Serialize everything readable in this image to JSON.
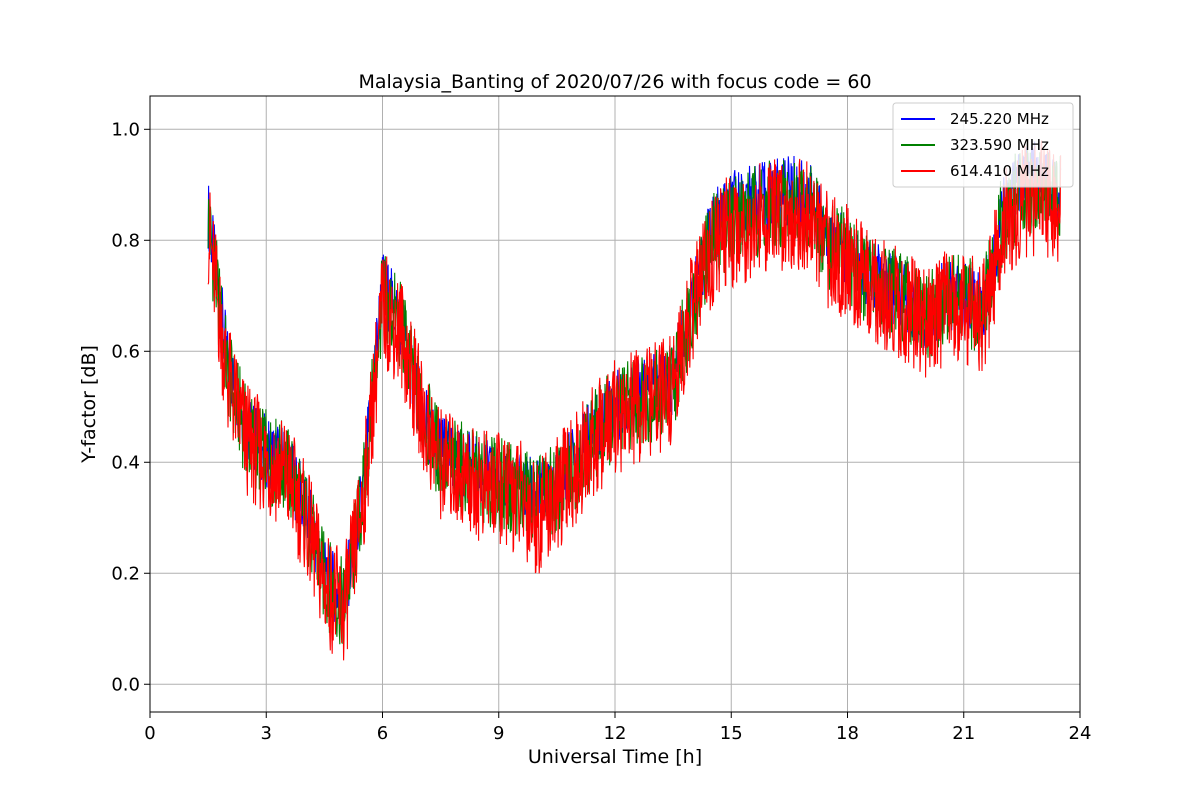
{
  "chart_data": {
    "type": "line",
    "title": "Malaysia_Banting of 2020/07/26 with focus code = 60",
    "xlabel": "Universal Time [h]",
    "ylabel": "Y-factor [dB]",
    "xlim": [
      0,
      24
    ],
    "ylim": [
      -0.05,
      1.06
    ],
    "xticks": [
      "0",
      "3",
      "6",
      "9",
      "12",
      "15",
      "18",
      "21",
      "24"
    ],
    "yticks": [
      "0.0",
      "0.2",
      "0.4",
      "0.6",
      "0.8",
      "1.0"
    ],
    "grid": true,
    "legend_position": "top-right",
    "series": [
      {
        "name": "245.220 MHz",
        "color": "#0000ff",
        "x": [
          1.5,
          2.0,
          2.5,
          3.0,
          3.5,
          4.0,
          4.5,
          5.0,
          5.5,
          6.0,
          6.5,
          7.0,
          7.5,
          8.0,
          8.5,
          9.0,
          9.5,
          10.0,
          10.5,
          11.0,
          11.5,
          12.0,
          12.5,
          13.0,
          13.5,
          14.0,
          14.5,
          15.0,
          15.5,
          16.0,
          16.5,
          17.0,
          17.5,
          18.0,
          18.5,
          19.0,
          19.5,
          20.0,
          20.5,
          21.0,
          21.5,
          22.0,
          22.5,
          23.0,
          23.5
        ],
        "y": [
          0.85,
          0.58,
          0.46,
          0.42,
          0.4,
          0.32,
          0.2,
          0.15,
          0.35,
          0.72,
          0.65,
          0.49,
          0.42,
          0.4,
          0.38,
          0.37,
          0.36,
          0.34,
          0.36,
          0.41,
          0.46,
          0.5,
          0.52,
          0.53,
          0.55,
          0.7,
          0.82,
          0.86,
          0.87,
          0.88,
          0.89,
          0.88,
          0.8,
          0.78,
          0.74,
          0.72,
          0.7,
          0.66,
          0.7,
          0.7,
          0.68,
          0.85,
          0.9,
          0.92,
          0.88
        ]
      },
      {
        "name": "323.590 MHz",
        "color": "#008000",
        "x": [
          1.5,
          2.0,
          2.5,
          3.0,
          3.5,
          4.0,
          4.5,
          5.0,
          5.5,
          6.0,
          6.5,
          7.0,
          7.5,
          8.0,
          8.5,
          9.0,
          9.5,
          10.0,
          10.5,
          11.0,
          11.5,
          12.0,
          12.5,
          13.0,
          13.5,
          14.0,
          14.5,
          15.0,
          15.5,
          16.0,
          16.5,
          17.0,
          17.5,
          18.0,
          18.5,
          19.0,
          19.5,
          20.0,
          20.5,
          21.0,
          21.5,
          22.0,
          22.5,
          23.0,
          23.5
        ],
        "y": [
          0.84,
          0.56,
          0.45,
          0.41,
          0.39,
          0.31,
          0.19,
          0.14,
          0.34,
          0.7,
          0.64,
          0.49,
          0.41,
          0.39,
          0.37,
          0.36,
          0.35,
          0.33,
          0.35,
          0.4,
          0.45,
          0.49,
          0.51,
          0.52,
          0.54,
          0.69,
          0.8,
          0.84,
          0.85,
          0.86,
          0.87,
          0.86,
          0.79,
          0.77,
          0.73,
          0.71,
          0.69,
          0.65,
          0.69,
          0.69,
          0.67,
          0.84,
          0.89,
          0.9,
          0.87
        ]
      },
      {
        "name": "614.410 MHz",
        "color": "#ff0000",
        "x": [
          1.5,
          2.0,
          2.5,
          3.0,
          3.5,
          4.0,
          4.5,
          5.0,
          5.5,
          6.0,
          6.5,
          7.0,
          7.5,
          8.0,
          8.5,
          9.0,
          9.5,
          10.0,
          10.5,
          11.0,
          11.5,
          12.0,
          12.5,
          13.0,
          13.5,
          14.0,
          14.5,
          15.0,
          15.5,
          16.0,
          16.5,
          17.0,
          17.5,
          18.0,
          18.5,
          19.0,
          19.5,
          20.0,
          20.5,
          21.0,
          21.5,
          22.0,
          22.5,
          23.0,
          23.5
        ],
        "y": [
          0.82,
          0.55,
          0.44,
          0.4,
          0.38,
          0.3,
          0.18,
          0.13,
          0.33,
          0.68,
          0.63,
          0.49,
          0.4,
          0.38,
          0.36,
          0.35,
          0.34,
          0.3,
          0.34,
          0.39,
          0.44,
          0.48,
          0.5,
          0.51,
          0.53,
          0.68,
          0.78,
          0.82,
          0.83,
          0.84,
          0.85,
          0.84,
          0.78,
          0.76,
          0.72,
          0.7,
          0.68,
          0.64,
          0.68,
          0.68,
          0.66,
          0.82,
          0.87,
          0.88,
          0.85
        ]
      }
    ]
  }
}
